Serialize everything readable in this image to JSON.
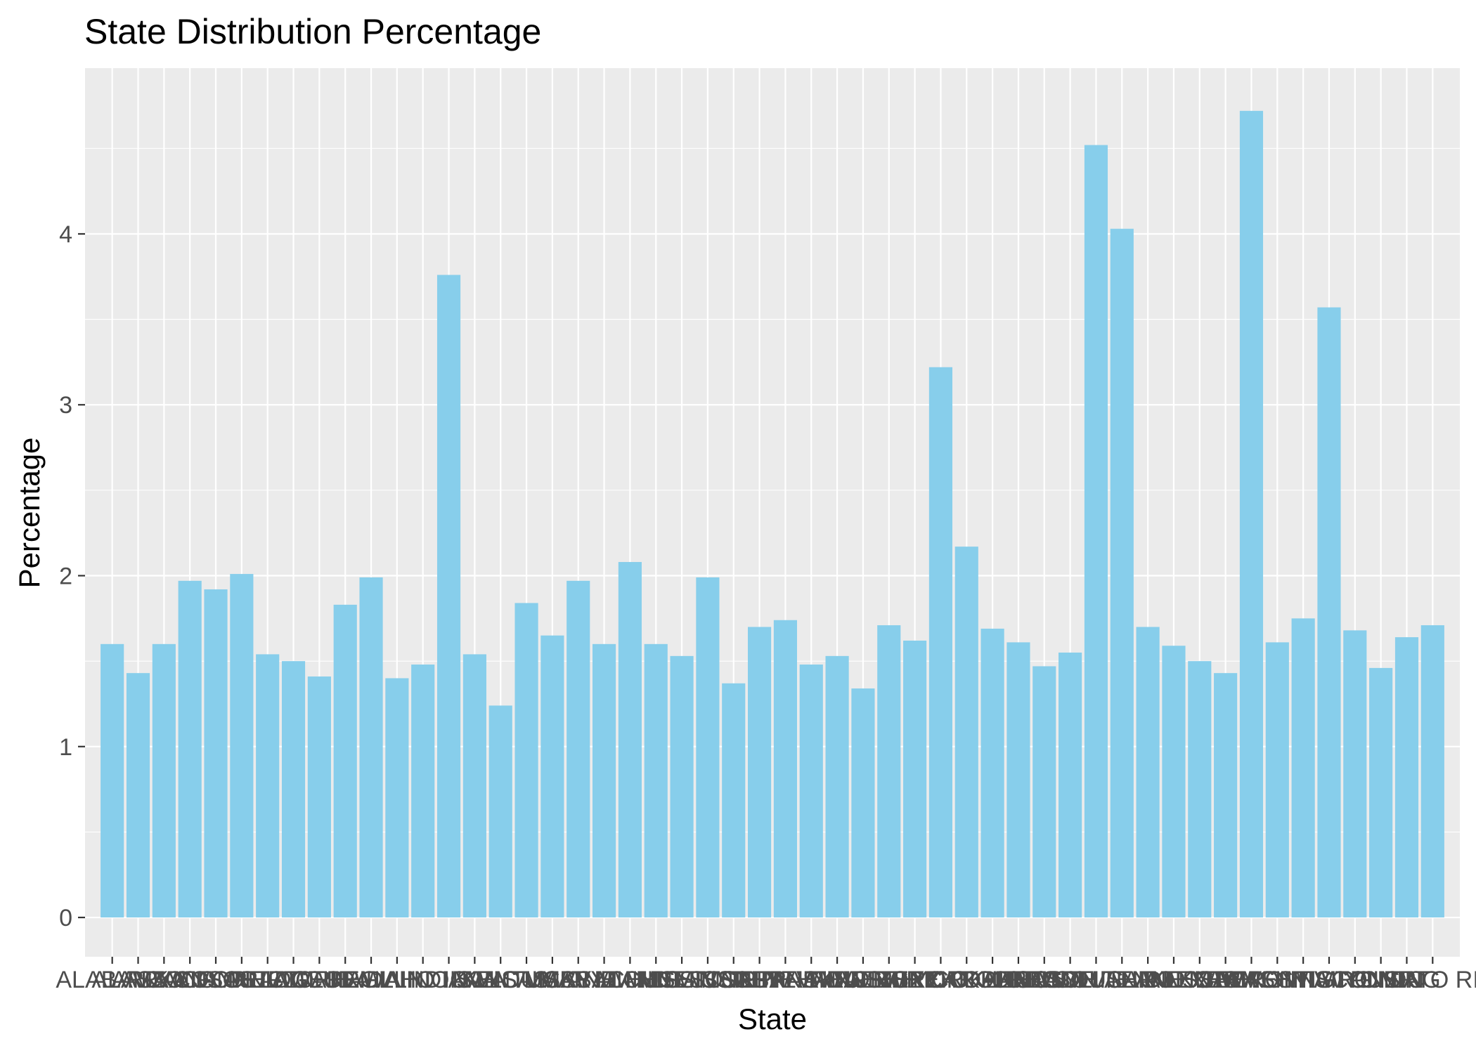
{
  "chart_data": {
    "type": "bar",
    "title": "State Distribution Percentage",
    "xlabel": "State",
    "ylabel": "Percentage",
    "ylim": [
      -0.23,
      4.97
    ],
    "yticks": [
      0,
      1,
      2,
      3,
      4
    ],
    "grid": true,
    "colors": {
      "bar": "#87ceeb",
      "panel": "#ebebeb",
      "grid": "#ffffff"
    },
    "categories": [
      "AL",
      "AK",
      "AZ",
      "AR",
      "CA",
      "CO",
      "CT",
      "DE",
      "FL",
      "GA",
      "HI",
      "ID",
      "IL",
      "IN",
      "IA",
      "KS",
      "KY",
      "LA",
      "ME",
      "MD",
      "MA",
      "MI",
      "MN",
      "MS",
      "MO",
      "MT",
      "NE",
      "NV",
      "NH",
      "NJ",
      "NM",
      "NY",
      "NC",
      "ND",
      "OH",
      "OK",
      "OR",
      "PA",
      "RI",
      "SC",
      "SD",
      "TN",
      "TX",
      "UT",
      "VT",
      "VA",
      "WA",
      "WV",
      "WI",
      "WY",
      "DC",
      "PR"
    ],
    "tick_labels": [
      "ALABAMA",
      "ALASKA",
      "ARIZONA",
      "ARKANSAS",
      "CALIFORNIA",
      "COLORADO",
      "CONNECTICUT",
      "DELAWARE",
      "FLORIDA",
      "GEORGIA",
      "HAWAII",
      "IDAHO",
      "ILLINOIS",
      "INDIANA",
      "IOWA",
      "KANSAS",
      "KENTUCKY",
      "LOUISIANA",
      "MAINE",
      "MARYLAND",
      "MASSACHUSETTS",
      "MICHIGAN",
      "MINNESOTA",
      "MISSISSIPPI",
      "MISSOURI",
      "MONTANA",
      "NEBRASKA",
      "NEVADA",
      "NEW HAMPSHIRE",
      "NEW JERSEY",
      "NEW MEXICO",
      "NEW YORK",
      "NORTH CAROLINA",
      "NORTH DAKOTA",
      "OHIO",
      "OKLAHOMA",
      "OREGON",
      "PENNSYLVANIA",
      "RHODE ISLAND",
      "SOUTH CAROLINA",
      "SOUTH DAKOTA",
      "TENNESSEE",
      "TEXAS",
      "UTAH",
      "VERMONT",
      "VIRGINIA",
      "WASHINGTON",
      "WEST VIRGINIA",
      "WISCONSIN",
      "WYOMING",
      "DC",
      "PUERTO RICO"
    ],
    "values": [
      1.6,
      1.43,
      1.6,
      1.97,
      1.92,
      2.01,
      1.54,
      1.5,
      1.41,
      1.83,
      1.99,
      1.4,
      1.48,
      3.76,
      1.54,
      1.24,
      1.84,
      1.65,
      1.97,
      1.6,
      2.08,
      1.6,
      1.53,
      1.99,
      1.37,
      1.7,
      1.74,
      1.48,
      1.53,
      1.34,
      1.71,
      1.62,
      3.22,
      2.17,
      1.69,
      1.61,
      1.47,
      1.55,
      4.52,
      4.03,
      1.7,
      1.59,
      1.5,
      1.43,
      4.72,
      1.61,
      1.75,
      3.57,
      1.68,
      1.46,
      1.64,
      1.71
    ]
  }
}
